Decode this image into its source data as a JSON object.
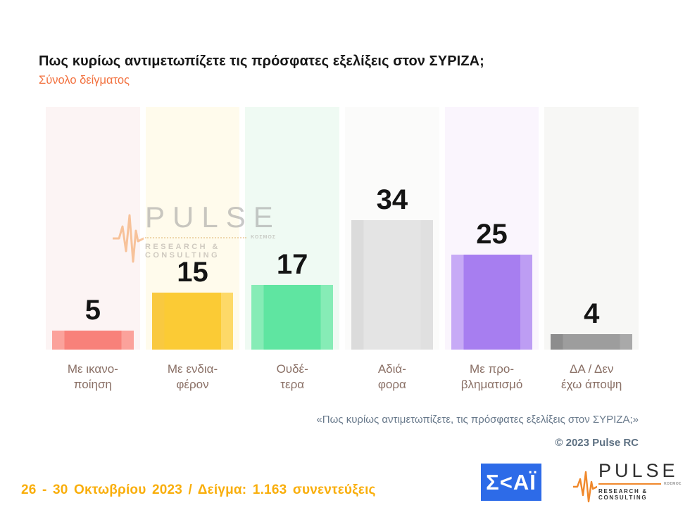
{
  "header": {
    "title": "Πως κυρίως αντιμετωπίζετε τις πρόσφατες εξελίξεις στον ΣΥΡΙΖΑ;",
    "subtitle": "Σύνολο δείγματος"
  },
  "chart_data": {
    "type": "bar",
    "title": "Πως κυρίως αντιμετωπίζετε τις πρόσφατες εξελίξεις στον ΣΥΡΙΖΑ;",
    "subtitle": "Σύνολο δείγματος",
    "categories": [
      "Με ικανοποίηση",
      "Με ενδιαφέρον",
      "Ουδέτερα",
      "Αδιάφορα",
      "Με προβληματισμό",
      "ΔΑ / Δεν έχω άποψη"
    ],
    "values": [
      5,
      15,
      17,
      34,
      25,
      4
    ],
    "xlabel": "",
    "ylabel": "",
    "ylim": [
      0,
      40
    ],
    "grid": false,
    "legend": "none",
    "columns": [
      {
        "label_line1": "Με ικανο-",
        "label_line2": "ποίηση",
        "value": 5,
        "bar_color": "#F8817A",
        "bar_edge_left": "#FBA29B",
        "bar_edge_right": "#FBA29B",
        "column_bg": "#FCF4F4"
      },
      {
        "label_line1": "Με ενδια-",
        "label_line2": "φέρον",
        "value": 15,
        "bar_color": "#FBCB35",
        "bar_edge_left": "#F9C940",
        "bar_edge_right": "#FDD968",
        "column_bg": "#FFFBEC"
      },
      {
        "label_line1": "Ουδέ-",
        "label_line2": "τερα",
        "value": 17,
        "bar_color": "#5FE5A1",
        "bar_edge_left": "#86ECB6",
        "bar_edge_right": "#86ECB6",
        "column_bg": "#EFFAF3"
      },
      {
        "label_line1": "Αδιά-",
        "label_line2": "φορα",
        "value": 34,
        "bar_color": "#E4E4E4",
        "bar_edge_left": "#DBDBDB",
        "bar_edge_right": "#E0E0E0",
        "column_bg": "#FBFBFA"
      },
      {
        "label_line1": "Με προ-",
        "label_line2": "βληματισμό",
        "value": 25,
        "bar_color": "#A77EF0",
        "bar_edge_left": "#C7AAF6",
        "bar_edge_right": "#BD9DF3",
        "column_bg": "#FAF5FD"
      },
      {
        "label_line1": "ΔΑ / Δεν",
        "label_line2": "έχω άποψη",
        "value": 4,
        "bar_color": "#9D9D9D",
        "bar_edge_left": "#8D8D8D",
        "bar_edge_right": "#A9A9A9",
        "column_bg": "#F7F7F5"
      }
    ]
  },
  "watermark": {
    "name": "PULSE",
    "small_text": "ΚΟΣΜΟΣ",
    "subtitle": "RESEARCH & CONSULTING"
  },
  "notes": {
    "question_quote": "«Πως κυρίως αντιμετωπίζετε, τις πρόσφατες εξελίξεις στον ΣΥΡΙΖΑ;»",
    "copyright": "© 2023 Pulse RC"
  },
  "footer": {
    "survey_info": "26 - 30 Οκτωβρίου 2023 / Δείγμα: 1.163 συνεντεύξεις"
  },
  "logos": {
    "skai_text": "Σ<ΑΪ",
    "pulse": {
      "name": "PULSE",
      "small_text": "ΚΟΣΜΟΣ",
      "subtitle": "RESEARCH & CONSULTING"
    }
  },
  "colors": {
    "subtitle_orange": "#F2703D",
    "footer_orange": "#F9AE0B",
    "note_slate": "#68798B",
    "label_brown": "#8A7066",
    "skai_blue": "#2D6BE8",
    "pulse_orange": "#F0882B"
  }
}
